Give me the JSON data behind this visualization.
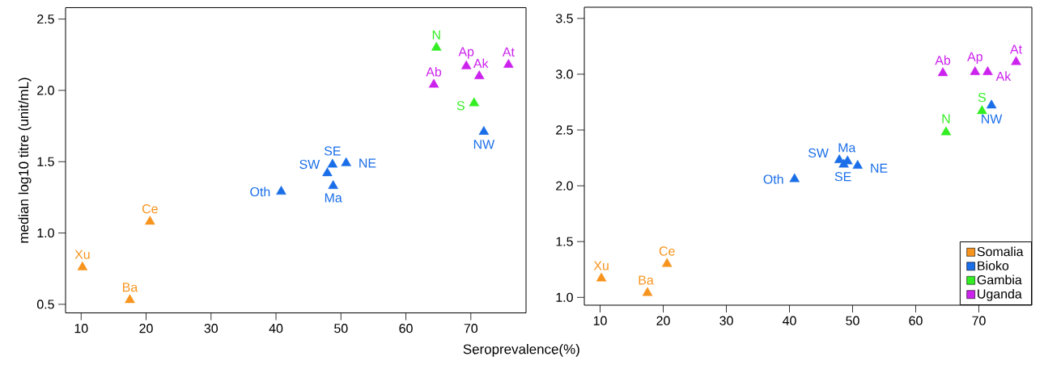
{
  "chart_data": [
    {
      "type": "scatter",
      "xlabel": "Seroprevalence(%)",
      "ylabel": "median log10 titre (unit/mL)",
      "marker": "triangle",
      "legend": false,
      "grid": false,
      "xlim": [
        7.6,
        78.5
      ],
      "ylim": [
        0.44,
        2.58
      ],
      "xticks": [
        10,
        20,
        30,
        40,
        50,
        60,
        70
      ],
      "yticks": [
        {
          "value": 0.5,
          "label": "0.5"
        },
        {
          "value": 1,
          "label": "1.0"
        },
        {
          "value": 1.5,
          "label": "1.5"
        },
        {
          "value": 2,
          "label": "2.0"
        },
        {
          "value": 2.5,
          "label": "2.5"
        }
      ],
      "series": [
        {
          "color": "#f7941d",
          "x": [
            10.2,
            17.5,
            20.6
          ],
          "values": [
            0.76,
            0.53,
            1.08
          ]
        },
        {
          "color": "#1a6ee8",
          "x": [
            40.8,
            47.9,
            48.7,
            48.8,
            50.8,
            72.0
          ],
          "values": [
            1.29,
            1.42,
            1.48,
            1.33,
            1.49,
            1.71
          ]
        },
        {
          "color": "#33ee22",
          "x": [
            64.7,
            70.5
          ],
          "values": [
            2.3,
            1.91
          ]
        },
        {
          "color": "#cc22ee",
          "x": [
            64.3,
            69.3,
            71.3,
            75.8
          ],
          "values": [
            2.04,
            2.17,
            2.1,
            2.18
          ]
        }
      ],
      "annotations": [
        {
          "text": "Xu",
          "x": 10.2,
          "y": 0.76
        },
        {
          "text": "Ba",
          "x": 17.5,
          "y": 0.53
        },
        {
          "text": "Ce",
          "x": 20.6,
          "y": 1.08
        },
        {
          "text": "Oth",
          "x": 40.8,
          "y": 1.29
        },
        {
          "text": "SW",
          "x": 47.9,
          "y": 1.42
        },
        {
          "text": "SE",
          "x": 48.7,
          "y": 1.48
        },
        {
          "text": "Ma",
          "x": 48.8,
          "y": 1.33
        },
        {
          "text": "NE",
          "x": 50.8,
          "y": 1.49
        },
        {
          "text": "NW",
          "x": 72.0,
          "y": 1.71
        },
        {
          "text": "N",
          "x": 64.7,
          "y": 2.3
        },
        {
          "text": "S",
          "x": 70.5,
          "y": 1.91
        },
        {
          "text": "Ab",
          "x": 64.3,
          "y": 2.04
        },
        {
          "text": "Ap",
          "x": 69.3,
          "y": 2.17
        },
        {
          "text": "Ak",
          "x": 71.3,
          "y": 2.1
        },
        {
          "text": "At",
          "x": 75.8,
          "y": 2.18
        }
      ]
    },
    {
      "type": "scatter",
      "marker": "triangle",
      "legend": "bottom right",
      "grid": false,
      "xlim": [
        7.5,
        78.4
      ],
      "ylim": [
        0.93,
        3.6
      ],
      "xticks": [
        10,
        20,
        30,
        40,
        50,
        60,
        70
      ],
      "yticks": [
        {
          "value": 1,
          "label": "1.0"
        },
        {
          "value": 1.5,
          "label": "1.5"
        },
        {
          "value": 2,
          "label": "2.0"
        },
        {
          "value": 2.5,
          "label": "2.5"
        },
        {
          "value": 3,
          "label": "3.0"
        },
        {
          "value": 3.5,
          "label": "3.5"
        }
      ],
      "series": [
        {
          "name": "Somalia",
          "color": "#f7941d",
          "x": [
            10.2,
            17.5,
            20.6
          ],
          "values": [
            1.17,
            1.04,
            1.3
          ]
        },
        {
          "name": "Bioko",
          "color": "#1a6ee8",
          "x": [
            40.8,
            47.9,
            48.6,
            49.2,
            50.8,
            72.0
          ],
          "values": [
            2.06,
            2.23,
            2.19,
            2.22,
            2.18,
            2.72
          ]
        },
        {
          "name": "Gambia",
          "color": "#33ee22",
          "x": [
            64.8,
            70.5
          ],
          "values": [
            2.48,
            2.67
          ]
        },
        {
          "name": "Uganda",
          "color": "#cc22ee",
          "x": [
            64.3,
            69.4,
            71.4,
            75.9
          ],
          "values": [
            3.01,
            3.02,
            3.02,
            3.11
          ]
        }
      ],
      "annotations": [
        {
          "text": "Xu",
          "x": 10.2,
          "y": 1.17
        },
        {
          "text": "Ba",
          "x": 17.5,
          "y": 1.04
        },
        {
          "text": "Ce",
          "x": 20.6,
          "y": 1.3
        },
        {
          "text": "Oth",
          "x": 40.8,
          "y": 2.06
        },
        {
          "text": "SW",
          "x": 47.9,
          "y": 2.23
        },
        {
          "text": "SE",
          "x": 48.6,
          "y": 2.19
        },
        {
          "text": "Ma",
          "x": 49.2,
          "y": 2.22
        },
        {
          "text": "NE",
          "x": 50.8,
          "y": 2.18
        },
        {
          "text": "NW",
          "x": 72.0,
          "y": 2.72
        },
        {
          "text": "N",
          "x": 64.8,
          "y": 2.48
        },
        {
          "text": "S",
          "x": 70.5,
          "y": 2.67
        },
        {
          "text": "Ab",
          "x": 64.3,
          "y": 3.01
        },
        {
          "text": "Ap",
          "x": 69.4,
          "y": 3.02
        },
        {
          "text": "Ak",
          "x": 71.4,
          "y": 3.02
        },
        {
          "text": "At",
          "x": 75.9,
          "y": 3.11
        }
      ]
    }
  ]
}
